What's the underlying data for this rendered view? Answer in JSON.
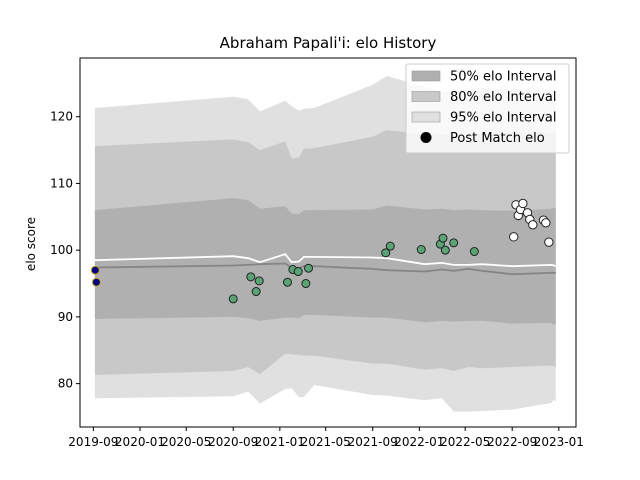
{
  "chart_data": {
    "type": "line",
    "title": "Abraham Papali'i: elo History",
    "ylabel": "elo score",
    "xlabel": "",
    "xlim": [
      "2019-07-28",
      "2023-02-15"
    ],
    "ylim": [
      73.5,
      128.8
    ],
    "x_ticks": [
      "2019-09",
      "2020-01",
      "2020-05",
      "2020-09",
      "2021-01",
      "2021-05",
      "2021-09",
      "2022-01",
      "2022-05",
      "2022-09",
      "2023-01"
    ],
    "y_ticks": [
      80,
      90,
      100,
      110,
      120
    ],
    "grid": false,
    "legend_position": "top-right",
    "legend": [
      {
        "label": "50% elo Interval",
        "kind": "band",
        "color": "#b0b0b0"
      },
      {
        "label": "80% elo Interval",
        "kind": "band",
        "color": "#c8c8c8"
      },
      {
        "label": "95% elo Interval",
        "kind": "band",
        "color": "#e0e0e0"
      },
      {
        "label": "Post Match elo",
        "kind": "marker",
        "color": "#000000"
      }
    ],
    "bands": {
      "x": [
        "2019-09-05",
        "2020-09-01",
        "2020-10-10",
        "2020-11-10",
        "2021-01-15",
        "2021-02-01",
        "2021-02-20",
        "2021-03-05",
        "2021-04-01",
        "2021-09-01",
        "2021-10-08",
        "2022-01-15",
        "2022-03-01",
        "2022-04-01",
        "2022-05-10",
        "2022-06-15",
        "2022-09-01",
        "2022-12-12",
        "2022-12-20",
        "2022-12-24"
      ],
      "p95_upper": [
        121.3,
        123.0,
        122.6,
        120.8,
        122.4,
        121.6,
        120.9,
        121.2,
        121.3,
        124.8,
        126.1,
        124.5,
        123.7,
        123.8,
        124.2,
        124.3,
        124.1,
        124.0,
        124.1,
        124.2
      ],
      "p80_upper": [
        115.6,
        116.6,
        116.2,
        115.0,
        116.3,
        113.7,
        113.9,
        115.2,
        115.3,
        117.0,
        118.0,
        117.4,
        117.4,
        117.1,
        117.3,
        117.5,
        117.5,
        117.6,
        117.6,
        117.7
      ],
      "p50_upper": [
        106.0,
        107.8,
        107.5,
        106.2,
        106.6,
        105.5,
        105.4,
        106.0,
        106.0,
        106.1,
        106.7,
        106.1,
        106.2,
        106.0,
        106.1,
        106.0,
        105.9,
        106.2,
        106.3,
        106.4
      ],
      "mean": [
        98.5,
        99.1,
        98.8,
        98.2,
        99.4,
        98.2,
        98.3,
        99.0,
        99.0,
        98.9,
        98.8,
        97.9,
        98.1,
        97.8,
        97.8,
        97.9,
        97.6,
        97.8,
        97.7,
        97.6
      ],
      "median": [
        97.4,
        97.7,
        97.8,
        97.9,
        98.0,
        97.4,
        97.3,
        97.6,
        97.6,
        97.2,
        97.0,
        96.8,
        97.1,
        96.9,
        97.2,
        96.9,
        96.4,
        96.6,
        96.6,
        96.6
      ],
      "p50_lower": [
        89.7,
        90.0,
        89.8,
        89.4,
        89.9,
        89.9,
        89.8,
        90.3,
        90.3,
        89.9,
        89.9,
        89.2,
        89.4,
        89.3,
        89.4,
        89.4,
        89.0,
        89.1,
        88.8,
        88.9
      ],
      "p80_lower": [
        81.3,
        81.9,
        82.5,
        81.4,
        84.5,
        84.4,
        84.3,
        84.2,
        84.2,
        83.0,
        83.0,
        82.1,
        82.3,
        81.9,
        82.5,
        82.3,
        82.5,
        82.7,
        82.6,
        82.4
      ],
      "p95_lower": [
        77.8,
        78.1,
        78.8,
        77.0,
        79.2,
        79.3,
        78.0,
        78.0,
        79.8,
        78.3,
        78.2,
        77.5,
        77.8,
        75.8,
        75.8,
        75.9,
        76.1,
        77.1,
        77.6,
        77.3
      ]
    },
    "series": [
      {
        "color": "#000080",
        "points": [
          {
            "x": "2019-09-06",
            "y": 97.0
          },
          {
            "x": "2019-09-09",
            "y": 95.2
          }
        ]
      },
      {
        "color": "#5aa375",
        "points": [
          {
            "x": "2020-09-01",
            "y": 92.7
          },
          {
            "x": "2020-10-17",
            "y": 96.0
          },
          {
            "x": "2020-10-31",
            "y": 93.8
          },
          {
            "x": "2020-11-08",
            "y": 95.4
          },
          {
            "x": "2021-01-21",
            "y": 95.2
          },
          {
            "x": "2021-02-04",
            "y": 97.1
          },
          {
            "x": "2021-02-18",
            "y": 96.8
          },
          {
            "x": "2021-03-10",
            "y": 95.0
          },
          {
            "x": "2021-03-17",
            "y": 97.3
          },
          {
            "x": "2021-10-05",
            "y": 99.6
          },
          {
            "x": "2021-10-17",
            "y": 100.6
          },
          {
            "x": "2022-01-06",
            "y": 100.1
          },
          {
            "x": "2022-02-25",
            "y": 100.9
          },
          {
            "x": "2022-03-04",
            "y": 101.8
          },
          {
            "x": "2022-03-10",
            "y": 100.0
          },
          {
            "x": "2022-04-01",
            "y": 101.1
          },
          {
            "x": "2022-05-25",
            "y": 99.8
          }
        ]
      },
      {
        "color": "#ffffff",
        "points": [
          {
            "x": "2022-09-05",
            "y": 102.0
          },
          {
            "x": "2022-09-11",
            "y": 106.8
          },
          {
            "x": "2022-09-17",
            "y": 105.2
          },
          {
            "x": "2022-09-23",
            "y": 106.1
          },
          {
            "x": "2022-09-29",
            "y": 107.0
          },
          {
            "x": "2022-10-11",
            "y": 105.6
          },
          {
            "x": "2022-10-17",
            "y": 104.6
          },
          {
            "x": "2022-10-25",
            "y": 103.8
          },
          {
            "x": "2022-11-22",
            "y": 104.5
          },
          {
            "x": "2022-11-28",
            "y": 104.1
          },
          {
            "x": "2022-12-06",
            "y": 101.2
          }
        ]
      }
    ]
  }
}
